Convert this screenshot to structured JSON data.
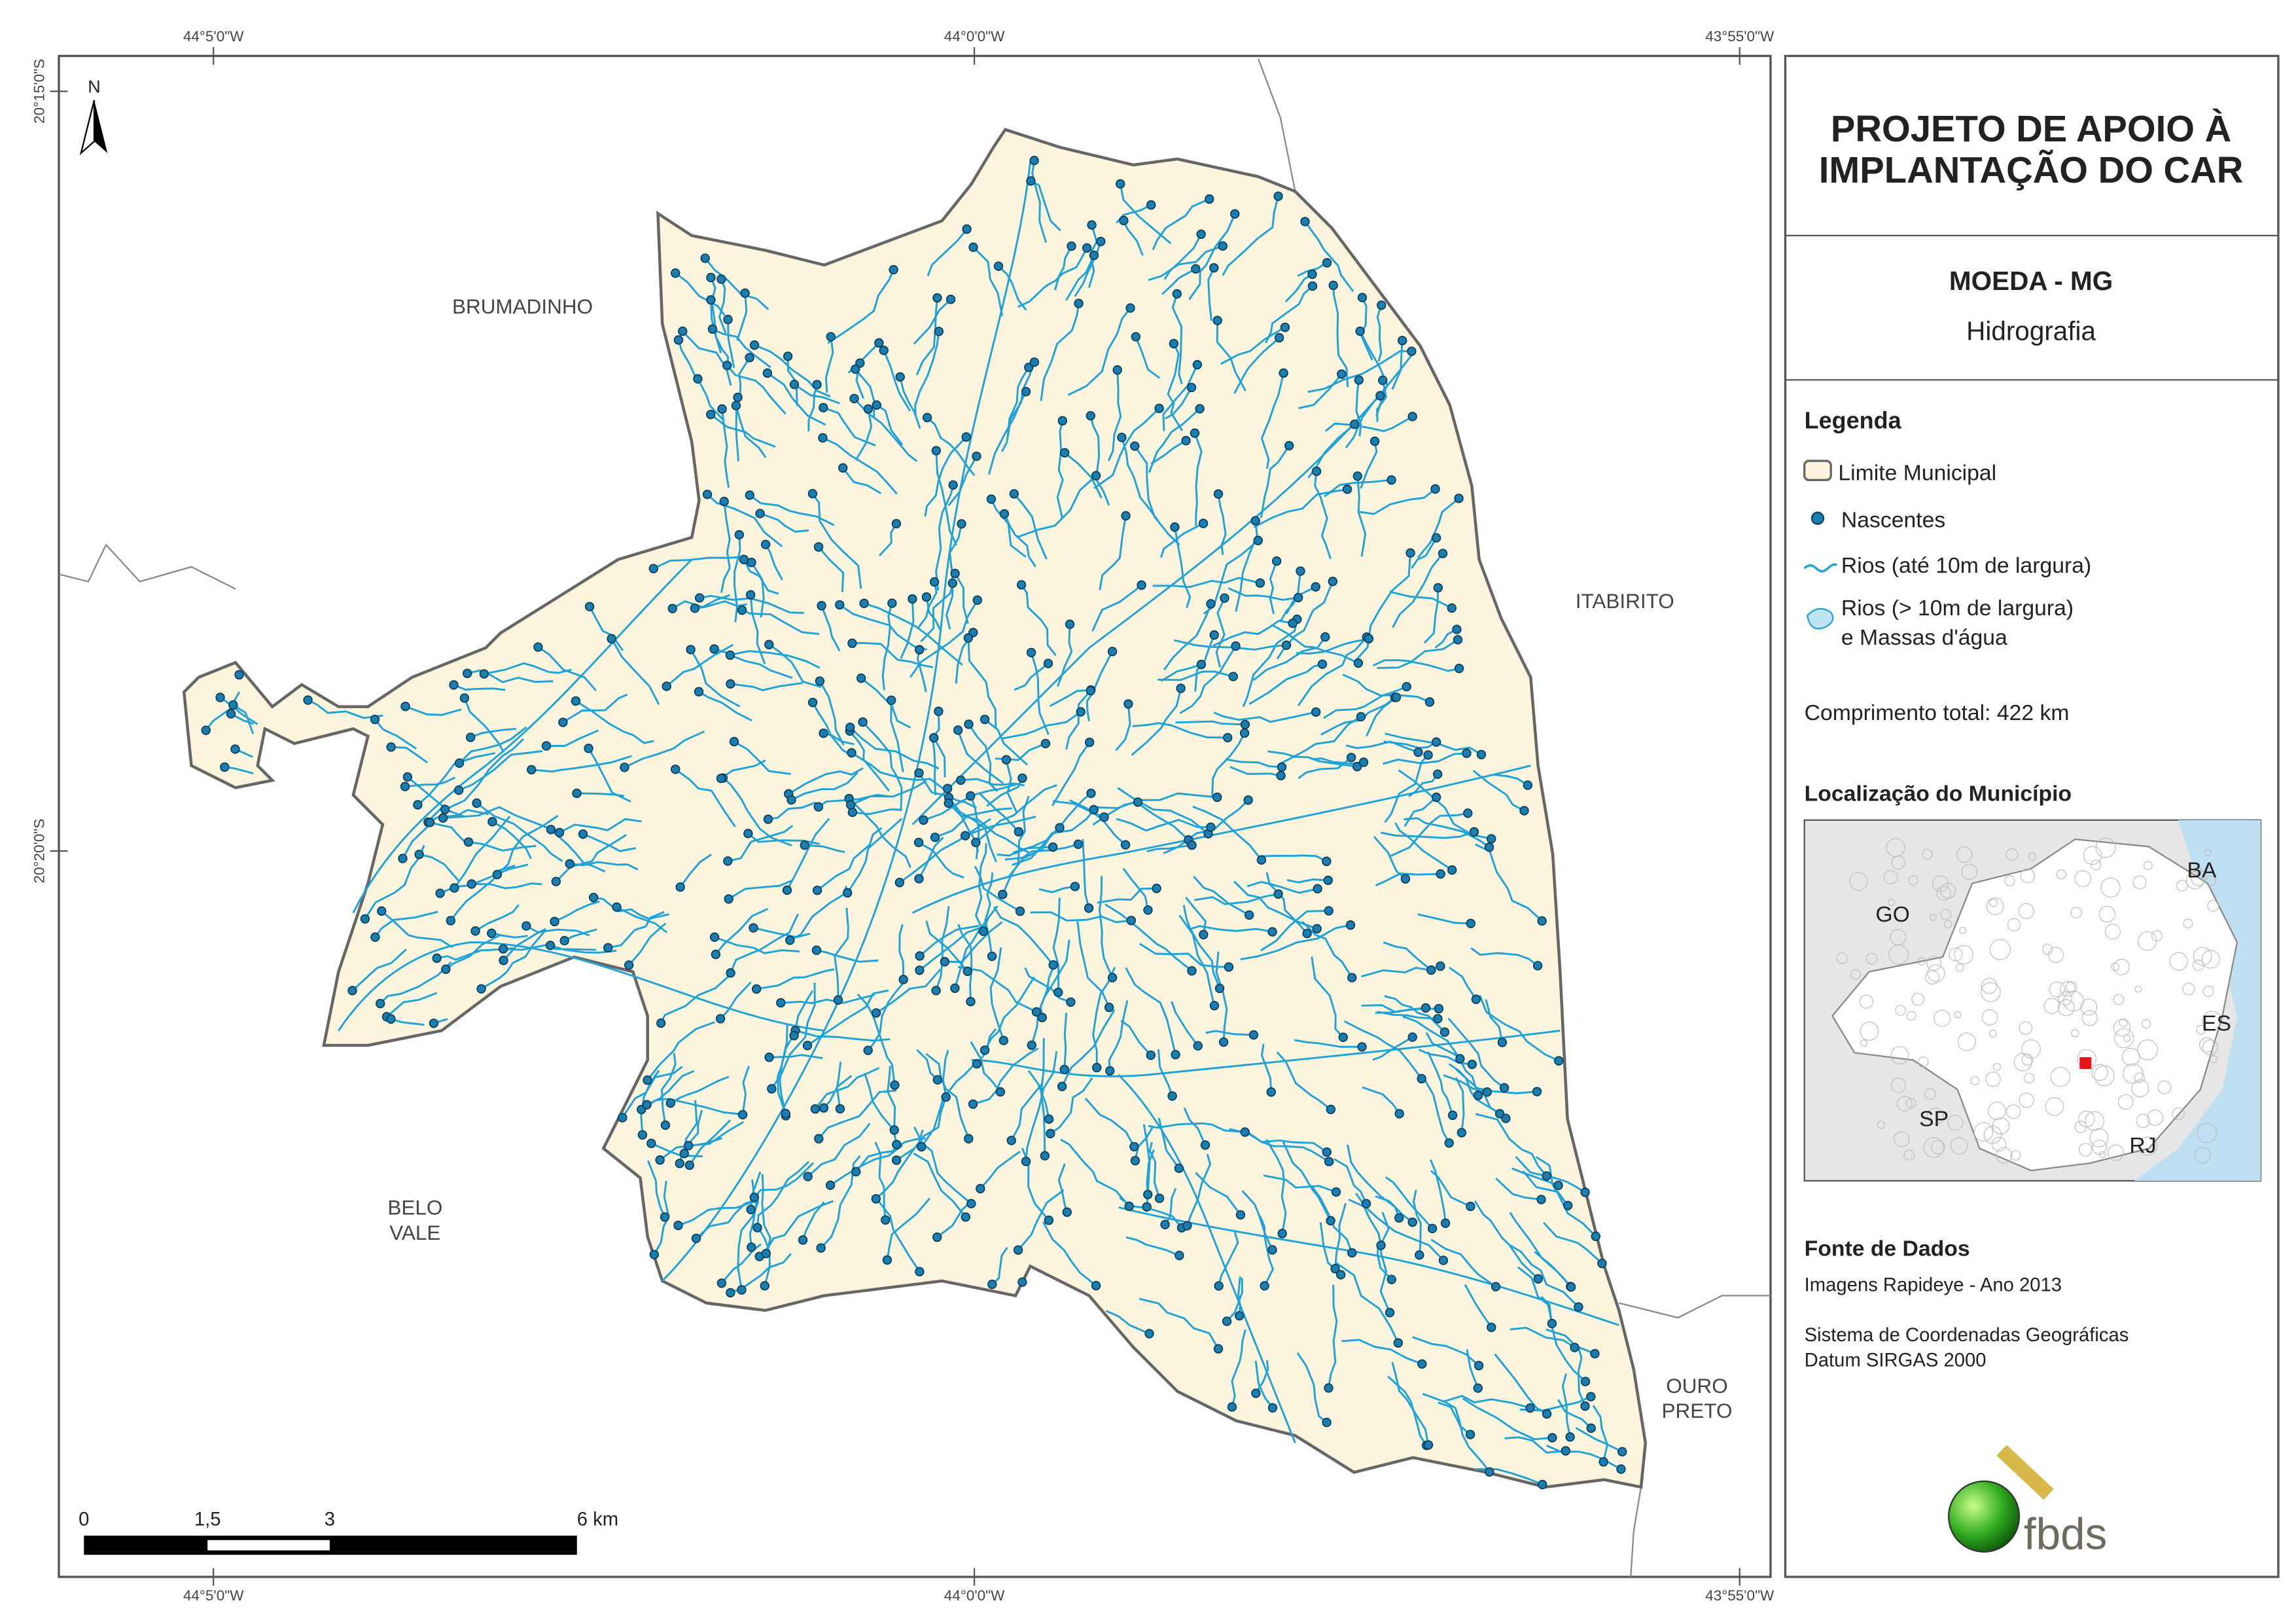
{
  "header": {
    "title": [
      "PROJETO DE APOIO À",
      "IMPLANTAÇÃO DO CAR"
    ],
    "municipality": "MOEDA - MG",
    "theme": "Hidrografia"
  },
  "map": {
    "coordinates": {
      "top": [
        "44°5'0\"W",
        "44°0'0\"W",
        "43°55'0\"W"
      ],
      "bottom": [
        "44°5'0\"W",
        "44°0'0\"W",
        "43°55'0\"W"
      ],
      "left": [
        "20°15'0\"S",
        "20°20'0\"S"
      ]
    },
    "north": "N",
    "neighbors": {
      "brumadinho": [
        "BRUMADINHO"
      ],
      "itabirito": [
        "ITABIRITO"
      ],
      "belo_vale": [
        "BELO",
        "VALE"
      ],
      "ouro_preto": [
        "OURO",
        "PRETO"
      ]
    },
    "scale_bar": [
      "0",
      "1,5",
      "3",
      "6 km"
    ]
  },
  "legend": {
    "title": "Legenda",
    "items": [
      "Limite Municipal",
      "Nascentes",
      "Rios (até 10m de largura)",
      "Rios (> 10m de largura)",
      "e Massas d'água"
    ],
    "total_length": "Comprimento total: 422 km"
  },
  "location": {
    "title": "Localização do Município",
    "states": [
      "BA",
      "GO",
      "ES",
      "SP",
      "RJ"
    ]
  },
  "source": {
    "title": "Fonte de Dados",
    "lines": [
      "Imagens Rapideye - Ano 2013",
      "Sistema de Coordenadas Geográficas",
      "Datum SIRGAS 2000"
    ]
  },
  "logo": "fbds"
}
